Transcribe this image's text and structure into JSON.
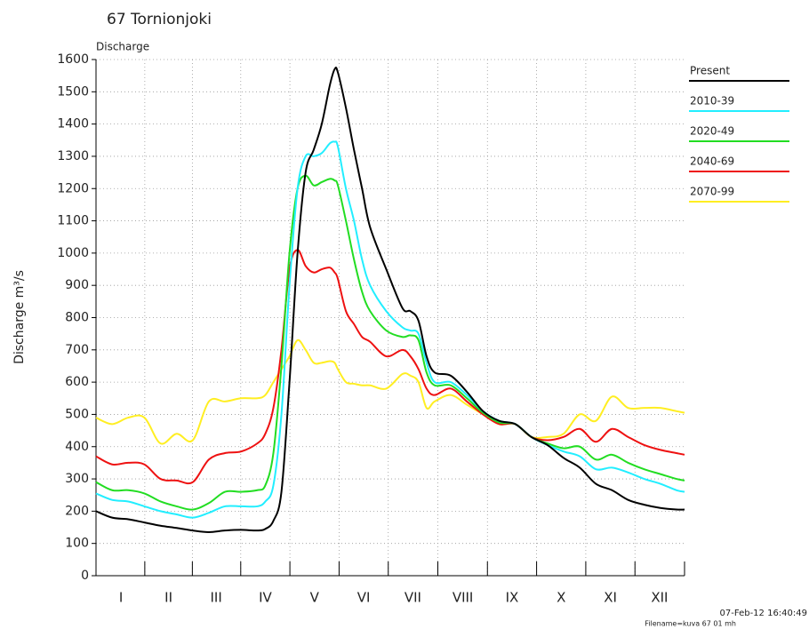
{
  "chart_data": {
    "type": "line",
    "title": "67 Tornionjoki",
    "subtitle": "Discharge",
    "y_label": "Discharge m³/s",
    "footer": [
      "07-Feb-12 16:40:49",
      "Filename=kuva 67 01 mh"
    ],
    "x": [
      0,
      10,
      20,
      30,
      40,
      50,
      60,
      70,
      80,
      90,
      100,
      105,
      110,
      115,
      120,
      125,
      130,
      135,
      140,
      145,
      148,
      150,
      155,
      160,
      165,
      170,
      180,
      190,
      195,
      200,
      205,
      210,
      220,
      230,
      240,
      250,
      260,
      270,
      280,
      290,
      300,
      310,
      320,
      330,
      340,
      350,
      360,
      365
    ],
    "xlim": [
      0,
      365
    ],
    "xticks": [
      {
        "value": 15.5,
        "label": "I"
      },
      {
        "value": 45,
        "label": "II"
      },
      {
        "value": 74.5,
        "label": "III"
      },
      {
        "value": 105,
        "label": "IV"
      },
      {
        "value": 135.5,
        "label": "V"
      },
      {
        "value": 166,
        "label": "VI"
      },
      {
        "value": 196.5,
        "label": "VII"
      },
      {
        "value": 227.5,
        "label": "VIII"
      },
      {
        "value": 258,
        "label": "IX"
      },
      {
        "value": 288.5,
        "label": "X"
      },
      {
        "value": 319,
        "label": "XI"
      },
      {
        "value": 349.5,
        "label": "XII"
      }
    ],
    "ylim": [
      0,
      1600
    ],
    "yticks": [
      0,
      100,
      200,
      300,
      400,
      500,
      600,
      700,
      800,
      900,
      1000,
      1100,
      1200,
      1300,
      1400,
      1500,
      1600
    ],
    "grid": true,
    "legend": "right",
    "series": [
      {
        "name": "Present",
        "color": "#000000",
        "values": [
          200,
          180,
          175,
          165,
          155,
          148,
          140,
          135,
          140,
          142,
          140,
          145,
          170,
          260,
          600,
          1000,
          1250,
          1320,
          1400,
          1520,
          1570,
          1560,
          1450,
          1320,
          1200,
          1080,
          950,
          830,
          820,
          790,
          680,
          630,
          620,
          570,
          510,
          480,
          470,
          430,
          405,
          365,
          335,
          285,
          265,
          235,
          220,
          210,
          205,
          205
        ]
      },
      {
        "name": "2010-39",
        "color": "#22eeff",
        "values": [
          255,
          235,
          230,
          215,
          200,
          190,
          180,
          195,
          215,
          215,
          215,
          230,
          280,
          500,
          900,
          1200,
          1300,
          1300,
          1310,
          1340,
          1345,
          1330,
          1200,
          1100,
          980,
          900,
          820,
          770,
          760,
          750,
          660,
          600,
          600,
          560,
          510,
          480,
          470,
          430,
          405,
          385,
          370,
          330,
          335,
          320,
          300,
          285,
          265,
          260
        ]
      },
      {
        "name": "2020-49",
        "color": "#22dd22",
        "values": [
          290,
          265,
          265,
          255,
          230,
          215,
          205,
          225,
          260,
          260,
          265,
          280,
          380,
          650,
          1000,
          1200,
          1240,
          1210,
          1220,
          1230,
          1225,
          1210,
          1100,
          980,
          880,
          820,
          760,
          740,
          745,
          730,
          630,
          590,
          590,
          550,
          505,
          475,
          470,
          430,
          410,
          395,
          400,
          360,
          375,
          350,
          330,
          315,
          300,
          295
        ]
      },
      {
        "name": "2040-69",
        "color": "#ee1111",
        "values": [
          370,
          345,
          350,
          345,
          300,
          295,
          290,
          360,
          380,
          385,
          410,
          440,
          520,
          700,
          950,
          1010,
          960,
          940,
          950,
          955,
          940,
          920,
          820,
          780,
          740,
          725,
          680,
          700,
          680,
          640,
          580,
          560,
          580,
          540,
          500,
          470,
          470,
          430,
          420,
          430,
          455,
          415,
          455,
          430,
          405,
          390,
          380,
          375
        ]
      },
      {
        "name": "2070-99",
        "color": "#ffee22",
        "values": [
          490,
          470,
          490,
          490,
          410,
          440,
          420,
          540,
          540,
          550,
          550,
          560,
          600,
          640,
          680,
          730,
          700,
          660,
          660,
          665,
          660,
          640,
          600,
          595,
          590,
          590,
          580,
          625,
          620,
          600,
          520,
          540,
          560,
          530,
          500,
          470,
          470,
          430,
          430,
          440,
          500,
          480,
          555,
          520,
          520,
          520,
          510,
          505
        ]
      }
    ]
  }
}
